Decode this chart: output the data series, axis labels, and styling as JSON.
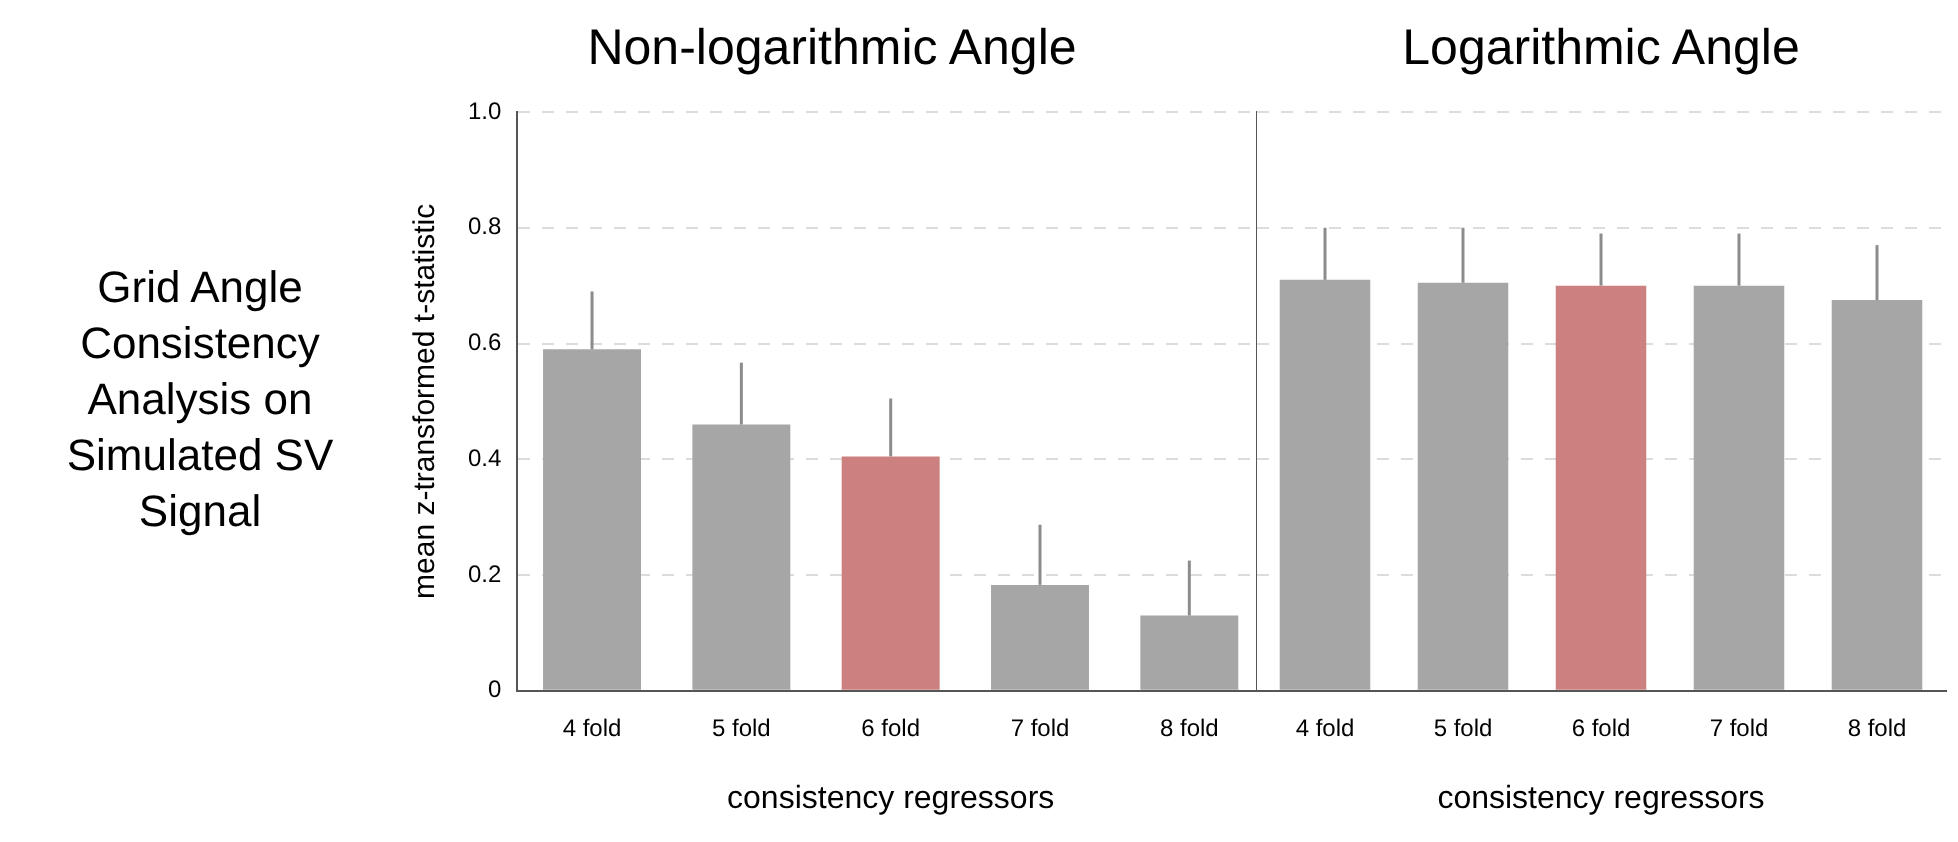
{
  "chart_data": [
    {
      "type": "bar",
      "title": "Non-logarithmic Angle",
      "xlabel": "consistency regressors",
      "ylabel": "mean z-transformed t-statistic",
      "annotations": [
        "Grid Angle Consistency Analysis on Simulated SV Signal"
      ],
      "categories": [
        "4 fold",
        "5 fold",
        "6 fold",
        "7 fold",
        "8 fold"
      ],
      "values": [
        0.59,
        0.46,
        0.405,
        0.183,
        0.13
      ],
      "errors": [
        [
          0.59,
          0.69
        ],
        [
          0.46,
          0.567
        ],
        [
          0.405,
          0.505
        ],
        [
          0.183,
          0.287
        ],
        [
          0.13,
          0.225
        ]
      ],
      "colors": [
        "#a6a6a6",
        "#a6a6a6",
        "#cd8080",
        "#a6a6a6",
        "#a6a6a6"
      ],
      "ylim": [
        0,
        1.0
      ],
      "yticks": [
        0,
        0.2,
        0.4,
        0.6,
        0.8,
        {
          "value": 1.0,
          "label": "1.0"
        }
      ],
      "grid": "y"
    },
    {
      "type": "bar",
      "title": "Logarithmic Angle",
      "xlabel": "consistency regressors",
      "categories": [
        "4 fold",
        "5 fold",
        "6 fold",
        "7 fold",
        "8 fold"
      ],
      "values": [
        0.71,
        0.705,
        0.7,
        0.7,
        0.675
      ],
      "errors": [
        [
          0.71,
          0.8
        ],
        [
          0.705,
          0.8
        ],
        [
          0.7,
          0.79
        ],
        [
          0.7,
          0.79
        ],
        [
          0.675,
          0.77
        ]
      ],
      "colors": [
        "#a6a6a6",
        "#a6a6a6",
        "#cd8080",
        "#a6a6a6",
        "#a6a6a6"
      ],
      "ylim": [
        0,
        1.0
      ],
      "yticks": [
        0,
        0.2,
        0.4,
        0.6,
        0.8,
        1
      ],
      "grid": "y",
      "tick_labels": "x"
    }
  ]
}
